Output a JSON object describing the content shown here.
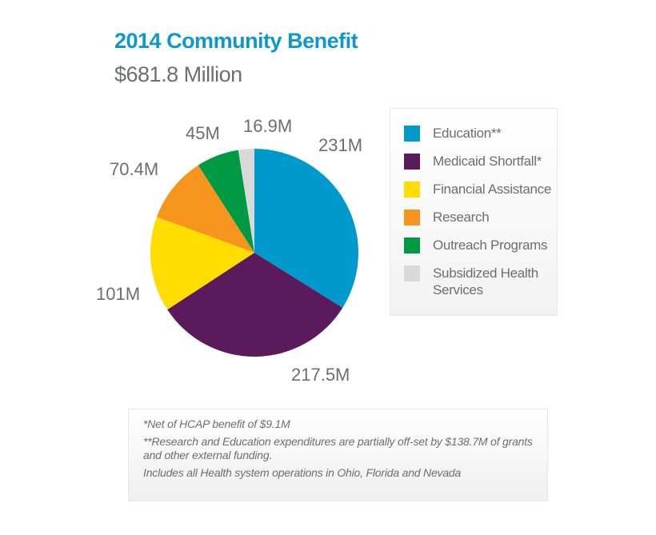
{
  "chart_data": {
    "type": "pie",
    "title": "2014 Community Benefit",
    "subtitle": "$681.8 Million",
    "unit": "M",
    "slices": [
      {
        "name": "Education**",
        "value": 231,
        "label": "231M",
        "color": "#0099cc"
      },
      {
        "name": "Medicaid Shortfall*",
        "value": 217.5,
        "label": "217.5M",
        "color": "#5a1a5c"
      },
      {
        "name": "Financial Assistance",
        "value": 101,
        "label": "101M",
        "color": "#ffdd00"
      },
      {
        "name": "Research",
        "value": 70.4,
        "label": "70.4M",
        "color": "#f7941d"
      },
      {
        "name": "Outreach Programs",
        "value": 45,
        "label": "45M",
        "color": "#009a44"
      },
      {
        "name": "Subsidized Health Services",
        "value": 16.9,
        "label": "16.9M",
        "color": "#d9d9d9"
      }
    ],
    "legend_position": "right",
    "legend": [
      "Education**",
      "Medicaid Shortfall*",
      "Financial Assistance",
      "Research",
      "Outreach Programs",
      "Subsidized Health Services"
    ]
  },
  "notes": [
    "*Net of HCAP benefit of $9.1M",
    "**Research and Education expenditures are partially off-set by $138.7M of grants and other external funding.",
    "Includes all Health system operations in Ohio, Florida and Nevada"
  ]
}
